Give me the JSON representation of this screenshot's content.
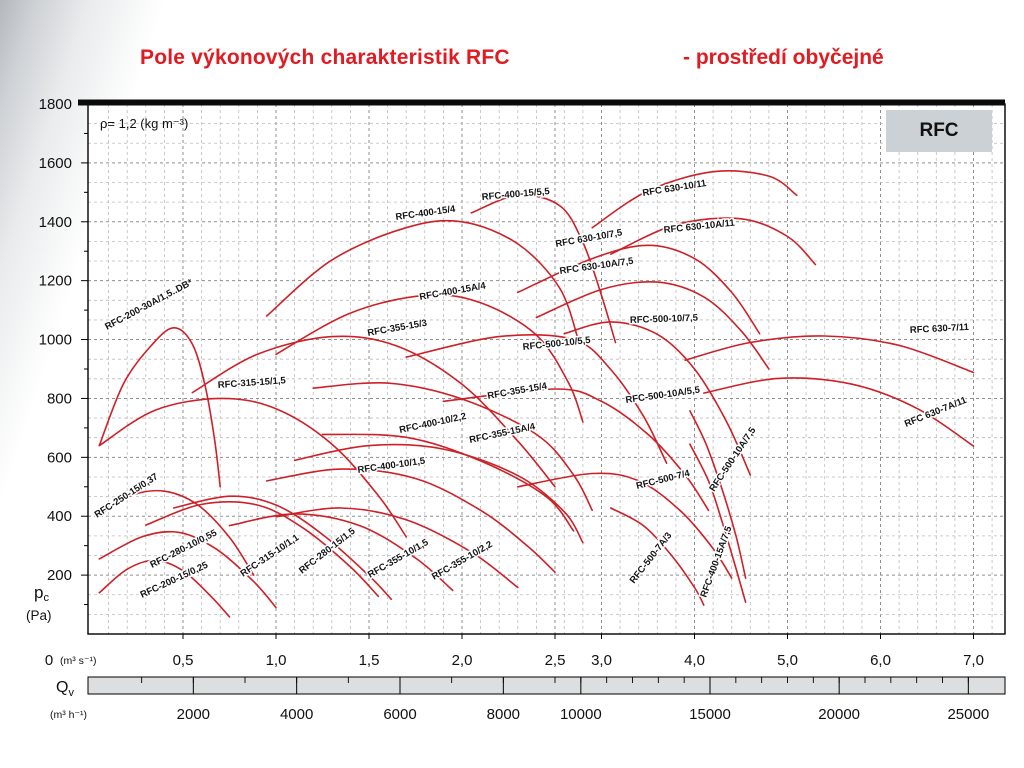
{
  "title": {
    "main": "Pole výkonových charakteristik RFC",
    "suffix": "- prostředí obyčejné"
  },
  "badge": "RFC",
  "density_label": "ρ= 1,2 (kg m⁻³)",
  "colors": {
    "curve": "#cd2027",
    "title": "#e01b22",
    "grid_minor": "#bcbcbc",
    "grid_major": "#8f8f8f",
    "badge_bg": "#ccd1d6",
    "strip_bg": "#dcdee0",
    "axis": "#111111"
  },
  "axes": {
    "y_ticks": [
      1800,
      1600,
      1400,
      1200,
      1000,
      800,
      600,
      400,
      200
    ],
    "y_zero": "0",
    "y_label_main": "p",
    "y_label_sub": "c",
    "y_label_unit": "(Pa)",
    "x_unit_s": "(m³ s⁻¹)",
    "x_unit_h": "(m³ h⁻¹)",
    "qv_main": "Q",
    "qv_sub": "v",
    "x_ticks_s": [
      {
        "q": 0.5,
        "label": "0,5"
      },
      {
        "q": 1.0,
        "label": "1,0"
      },
      {
        "q": 1.5,
        "label": "1,5"
      },
      {
        "q": 2.0,
        "label": "2,0"
      },
      {
        "q": 2.5,
        "label": "2,5"
      },
      {
        "q": 3.0,
        "label": "3,0"
      },
      {
        "q": 4.0,
        "label": "4,0"
      },
      {
        "q": 5.0,
        "label": "5,0"
      },
      {
        "q": 6.0,
        "label": "6,0"
      },
      {
        "q": 7.0,
        "label": "7,0"
      }
    ],
    "x_ticks_h": [
      {
        "v": 2000,
        "label": "2000"
      },
      {
        "v": 4000,
        "label": "4000"
      },
      {
        "v": 6000,
        "label": "6000"
      },
      {
        "v": 8000,
        "label": "8000"
      },
      {
        "v": 10000,
        "label": "10000"
      },
      {
        "v": 15000,
        "label": "15000"
      },
      {
        "v": 20000,
        "label": "20000"
      },
      {
        "v": 25000,
        "label": "25000"
      }
    ]
  },
  "chart_data": {
    "type": "line",
    "title": "Pole výkonových charakteristik RFC - prostředí obyčejné",
    "xlabel": "Qv (m³ s⁻¹)",
    "xlabel2": "Qv (m³ h⁻¹)",
    "ylabel": "pc (Pa)",
    "ylim": [
      0,
      1800
    ],
    "xlim": [
      0,
      7.3
    ],
    "x_scale_note": "x axis piecewise linear: 0-2.5 m³/s drawn at double density, 2.5-7 m³/s normal",
    "grid": true,
    "series": [
      {
        "name": "RFC-200-30A/1,5..DB*",
        "points": [
          [
            0.05,
            640
          ],
          [
            0.18,
            850
          ],
          [
            0.33,
            980
          ],
          [
            0.45,
            1040
          ],
          [
            0.55,
            985
          ],
          [
            0.62,
            840
          ],
          [
            0.67,
            660
          ],
          [
            0.7,
            500
          ]
        ],
        "label": {
          "x": 107,
          "y": 330,
          "r": -28
        }
      },
      {
        "name": "RFC-400-15/4",
        "points": [
          [
            0.95,
            1080
          ],
          [
            1.3,
            1270
          ],
          [
            1.7,
            1380
          ],
          [
            2.0,
            1400
          ],
          [
            2.3,
            1325
          ],
          [
            2.55,
            1175
          ],
          [
            2.75,
            1000
          ]
        ],
        "label": {
          "x": 396,
          "y": 220,
          "r": -8
        }
      },
      {
        "name": "RFC-400-15/5,5",
        "points": [
          [
            2.05,
            1430
          ],
          [
            2.3,
            1490
          ],
          [
            2.55,
            1455
          ],
          [
            2.8,
            1330
          ],
          [
            3.0,
            1150
          ],
          [
            3.15,
            990
          ]
        ],
        "label": {
          "x": 482,
          "y": 200,
          "r": -5
        }
      },
      {
        "name": "RFC 630-10/11",
        "points": [
          [
            2.9,
            1380
          ],
          [
            3.5,
            1505
          ],
          [
            4.2,
            1570
          ],
          [
            4.8,
            1555
          ],
          [
            5.1,
            1490
          ]
        ],
        "label": {
          "x": 643,
          "y": 196,
          "r": -9
        }
      },
      {
        "name": "RFC 630-10/7,5",
        "points": [
          [
            2.3,
            1160
          ],
          [
            2.9,
            1275
          ],
          [
            3.5,
            1320
          ],
          [
            4.0,
            1275
          ],
          [
            4.4,
            1160
          ],
          [
            4.7,
            1020
          ]
        ],
        "label": {
          "x": 556,
          "y": 247,
          "r": -10
        }
      },
      {
        "name": "RFC 630-10A/7,5",
        "points": [
          [
            2.4,
            1075
          ],
          [
            3.0,
            1170
          ],
          [
            3.6,
            1195
          ],
          [
            4.1,
            1145
          ],
          [
            4.5,
            1030
          ],
          [
            4.8,
            900
          ]
        ],
        "label": {
          "x": 560,
          "y": 274,
          "r": -8
        }
      },
      {
        "name": "RFC 630-10A/11",
        "points": [
          [
            3.1,
            1290
          ],
          [
            3.8,
            1390
          ],
          [
            4.5,
            1410
          ],
          [
            5.0,
            1350
          ],
          [
            5.3,
            1255
          ]
        ],
        "label": {
          "x": 664,
          "y": 233,
          "r": -6
        }
      },
      {
        "name": "RFC-400-15A/4",
        "points": [
          [
            1.0,
            950
          ],
          [
            1.4,
            1090
          ],
          [
            1.8,
            1150
          ],
          [
            2.1,
            1125
          ],
          [
            2.4,
            1015
          ],
          [
            2.65,
            850
          ],
          [
            2.8,
            720
          ]
        ],
        "label": {
          "x": 420,
          "y": 300,
          "r": -10
        }
      },
      {
        "name": "RFC-500-10/5,5",
        "points": [
          [
            1.7,
            940
          ],
          [
            2.2,
            1010
          ],
          [
            2.7,
            1000
          ],
          [
            3.1,
            898
          ],
          [
            3.45,
            740
          ],
          [
            3.7,
            580
          ]
        ],
        "label": {
          "x": 523,
          "y": 350,
          "r": -6
        }
      },
      {
        "name": "RFC-500-10/7,5",
        "points": [
          [
            2.6,
            1020
          ],
          [
            3.1,
            1060
          ],
          [
            3.6,
            1018
          ],
          [
            4.0,
            900
          ],
          [
            4.35,
            718
          ],
          [
            4.6,
            540
          ]
        ],
        "label": {
          "x": 630,
          "y": 323,
          "r": -2
        }
      },
      {
        "name": "RFC 630-7/11",
        "points": [
          [
            3.9,
            930
          ],
          [
            4.6,
            990
          ],
          [
            5.4,
            1012
          ],
          [
            6.2,
            980
          ],
          [
            7.0,
            888
          ]
        ],
        "label": {
          "x": 910,
          "y": 333,
          "r": -3
        }
      },
      {
        "name": "RFC-355-15/3",
        "points": [
          [
            0.55,
            820
          ],
          [
            0.9,
            950
          ],
          [
            1.3,
            1010
          ],
          [
            1.65,
            978
          ],
          [
            2.0,
            848
          ],
          [
            2.3,
            655
          ],
          [
            2.5,
            500
          ]
        ],
        "label": {
          "x": 368,
          "y": 336,
          "r": -10
        }
      },
      {
        "name": "RFC-315-15/1,5",
        "points": [
          [
            0.05,
            640
          ],
          [
            0.35,
            760
          ],
          [
            0.7,
            800
          ],
          [
            1.0,
            765
          ],
          [
            1.3,
            645
          ],
          [
            1.55,
            470
          ],
          [
            1.7,
            330
          ]
        ],
        "label": {
          "x": 218,
          "y": 388,
          "r": -4
        }
      },
      {
        "name": "RFC-355-15/4",
        "points": [
          [
            1.2,
            835
          ],
          [
            1.6,
            852
          ],
          [
            2.0,
            798
          ],
          [
            2.4,
            678
          ],
          [
            2.7,
            540
          ],
          [
            2.9,
            420
          ]
        ],
        "label": {
          "x": 488,
          "y": 399,
          "r": -10
        }
      },
      {
        "name": "RFC-500-10A/5,5",
        "points": [
          [
            1.9,
            790
          ],
          [
            2.5,
            832
          ],
          [
            3.0,
            790
          ],
          [
            3.5,
            678
          ],
          [
            3.9,
            540
          ],
          [
            4.15,
            420
          ]
        ],
        "label": {
          "x": 626,
          "y": 403,
          "r": -8
        }
      },
      {
        "name": "RFC 630-7A/11",
        "points": [
          [
            4.1,
            818
          ],
          [
            4.9,
            868
          ],
          [
            5.7,
            848
          ],
          [
            6.4,
            765
          ],
          [
            7.0,
            638
          ]
        ],
        "label": {
          "x": 906,
          "y": 427,
          "r": -22
        }
      },
      {
        "name": "RFC-400-10/2,2",
        "points": [
          [
            1.1,
            590
          ],
          [
            1.5,
            640
          ],
          [
            1.9,
            628
          ],
          [
            2.3,
            538
          ],
          [
            2.6,
            415
          ],
          [
            2.8,
            310
          ]
        ],
        "label": {
          "x": 400,
          "y": 433,
          "r": -12
        }
      },
      {
        "name": "RFC-355-15A/4",
        "points": [
          [
            1.25,
            678
          ],
          [
            1.7,
            668
          ],
          [
            2.1,
            588
          ],
          [
            2.45,
            468
          ],
          [
            2.7,
            350
          ]
        ],
        "label": {
          "x": 470,
          "y": 443,
          "r": -12
        }
      },
      {
        "name": "RFC-500-10A/7,5",
        "points": [
          [
            3.95,
            758
          ],
          [
            4.12,
            648
          ],
          [
            4.3,
            488
          ],
          [
            4.45,
            328
          ],
          [
            4.55,
            190
          ]
        ],
        "label": {
          "x": 714,
          "y": 492,
          "r": -56
        }
      },
      {
        "name": "RFC-250-15/0,37",
        "points": [
          [
            0.04,
            400
          ],
          [
            0.22,
            470
          ],
          [
            0.4,
            485
          ],
          [
            0.58,
            438
          ],
          [
            0.75,
            328
          ],
          [
            0.88,
            200
          ]
        ],
        "label": {
          "x": 97,
          "y": 518,
          "r": -33
        }
      },
      {
        "name": "RFC-400-10/1,5",
        "points": [
          [
            0.95,
            520
          ],
          [
            1.35,
            560
          ],
          [
            1.75,
            528
          ],
          [
            2.1,
            420
          ],
          [
            2.35,
            300
          ],
          [
            2.5,
            210
          ]
        ],
        "label": {
          "x": 358,
          "y": 473,
          "r": -8
        }
      },
      {
        "name": "RFC-500-7/4",
        "points": [
          [
            2.3,
            500
          ],
          [
            2.9,
            545
          ],
          [
            3.4,
            520
          ],
          [
            3.85,
            418
          ],
          [
            4.2,
            290
          ],
          [
            4.4,
            190
          ]
        ],
        "label": {
          "x": 637,
          "y": 489,
          "r": -14
        }
      },
      {
        "name": "RFC-280-10/0,55",
        "points": [
          [
            0.05,
            255
          ],
          [
            0.28,
            330
          ],
          [
            0.48,
            345
          ],
          [
            0.68,
            288
          ],
          [
            0.88,
            178
          ],
          [
            1.0,
            90
          ]
        ],
        "label": {
          "x": 152,
          "y": 568,
          "r": -27
        }
      },
      {
        "name": "RFC-315-10/1,1",
        "points": [
          [
            0.3,
            370
          ],
          [
            0.6,
            440
          ],
          [
            0.9,
            438
          ],
          [
            1.15,
            358
          ],
          [
            1.4,
            228
          ],
          [
            1.55,
            128
          ]
        ],
        "label": {
          "x": 243,
          "y": 577,
          "r": -34
        }
      },
      {
        "name": "RFC-280-15/1,5",
        "points": [
          [
            0.45,
            428
          ],
          [
            0.75,
            468
          ],
          [
            1.0,
            438
          ],
          [
            1.25,
            338
          ],
          [
            1.5,
            198
          ],
          [
            1.62,
            118
          ]
        ],
        "label": {
          "x": 302,
          "y": 574,
          "r": -38
        }
      },
      {
        "name": "RFC-355-10/1,5",
        "points": [
          [
            0.75,
            368
          ],
          [
            1.1,
            408
          ],
          [
            1.45,
            368
          ],
          [
            1.75,
            258
          ],
          [
            1.95,
            148
          ]
        ],
        "label": {
          "x": 370,
          "y": 578,
          "r": -30
        }
      },
      {
        "name": "RFC-355-10/2,2",
        "points": [
          [
            1.0,
            398
          ],
          [
            1.35,
            428
          ],
          [
            1.7,
            388
          ],
          [
            2.05,
            278
          ],
          [
            2.3,
            158
          ]
        ],
        "label": {
          "x": 434,
          "y": 580,
          "r": -30
        }
      },
      {
        "name": "RFC-500-7A/3",
        "points": [
          [
            3.1,
            428
          ],
          [
            3.45,
            368
          ],
          [
            3.75,
            268
          ],
          [
            4.0,
            158
          ],
          [
            4.1,
            98
          ]
        ],
        "label": {
          "x": 634,
          "y": 584,
          "r": -52
        }
      },
      {
        "name": "RFC-400-15A/7,5",
        "points": [
          [
            3.95,
            645
          ],
          [
            4.15,
            520
          ],
          [
            4.3,
            378
          ],
          [
            4.45,
            218
          ],
          [
            4.55,
            108
          ]
        ],
        "label": {
          "x": 706,
          "y": 598,
          "r": -70
        }
      },
      {
        "name": "RFC-200-15/0,25",
        "points": [
          [
            0.05,
            140
          ],
          [
            0.2,
            220
          ],
          [
            0.35,
            250
          ],
          [
            0.5,
            215
          ],
          [
            0.65,
            128
          ],
          [
            0.75,
            58
          ]
        ],
        "label": {
          "x": 142,
          "y": 598,
          "r": -25
        }
      }
    ]
  }
}
